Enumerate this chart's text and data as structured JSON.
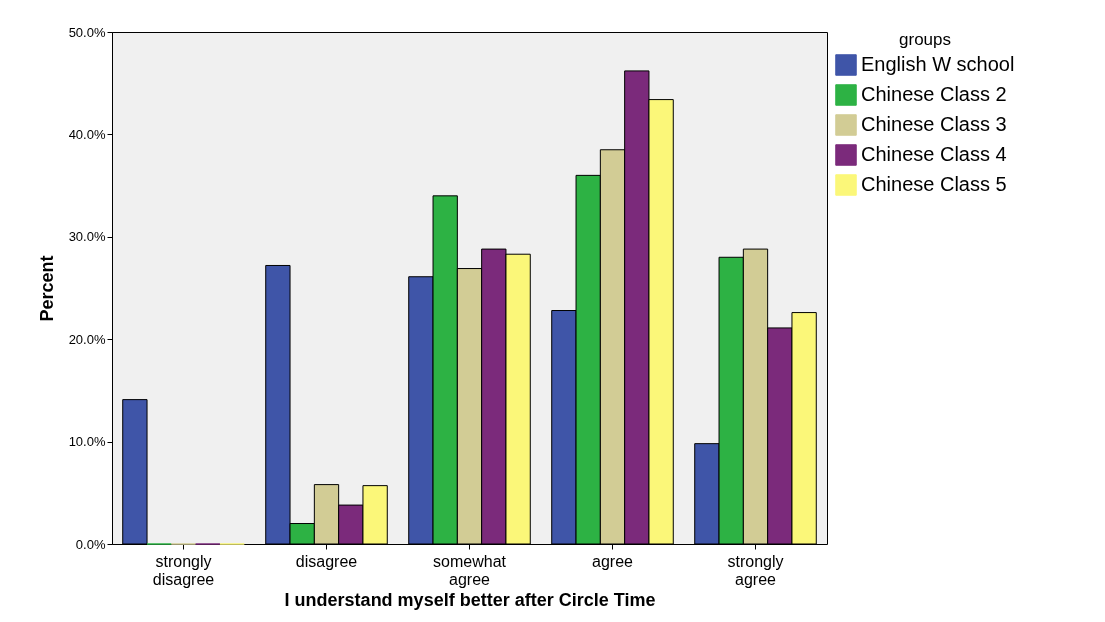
{
  "chart_data": {
    "type": "bar",
    "xlabel": "I understand myself better after Circle Time",
    "ylabel": "Percent",
    "legend_title": "groups",
    "legend": "top right",
    "grid": false,
    "categories": [
      "strongly disagree",
      "disagree",
      "somewhat agree",
      "agree",
      "strongly agree"
    ],
    "ylim": [
      0,
      50
    ],
    "yticks": [
      {
        "value": 0,
        "label": "0.0%"
      },
      {
        "value": 10,
        "label": "10.0%"
      },
      {
        "value": 20,
        "label": "20.0%"
      },
      {
        "value": 30,
        "label": "30.0%"
      },
      {
        "value": 40,
        "label": "40.0%"
      },
      {
        "value": 50,
        "label": "50.0%"
      }
    ],
    "series": [
      {
        "name": "English W school",
        "color": "#3f55a8",
        "values": [
          14.1,
          27.2,
          26.1,
          22.8,
          9.8
        ]
      },
      {
        "name": "Chinese Class 2",
        "color": "#2db244",
        "values": [
          0,
          2.0,
          34.0,
          36.0,
          28.0
        ]
      },
      {
        "name": "Chinese Class 3",
        "color": "#d2cc95",
        "values": [
          0,
          5.8,
          26.9,
          38.5,
          28.8
        ]
      },
      {
        "name": "Chinese Class 4",
        "color": "#7b2a7b",
        "values": [
          0,
          3.8,
          28.8,
          46.2,
          21.1
        ]
      },
      {
        "name": "Chinese Class 5",
        "color": "#fbf779",
        "values": [
          0,
          5.7,
          28.3,
          43.4,
          22.6
        ]
      }
    ]
  }
}
